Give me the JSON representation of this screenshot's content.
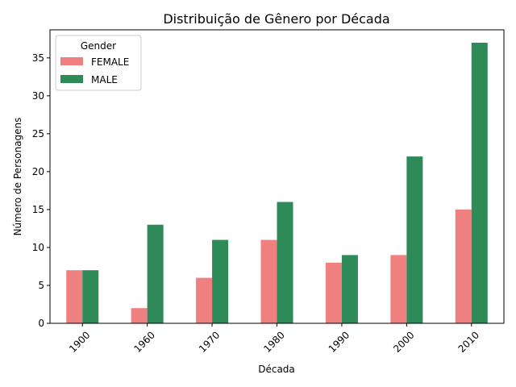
{
  "chart_data": {
    "type": "bar",
    "title": "Distribuição de Gênero por Década",
    "xlabel": "Década",
    "ylabel": "Número de Personagens",
    "categories": [
      "1900",
      "1960",
      "1970",
      "1980",
      "1990",
      "2000",
      "2010"
    ],
    "series": [
      {
        "name": "FEMALE",
        "color": "#f08080",
        "values": [
          7,
          2,
          6,
          11,
          8,
          9,
          15
        ]
      },
      {
        "name": "MALE",
        "color": "#2e8b57",
        "values": [
          7,
          13,
          11,
          16,
          9,
          22,
          37
        ]
      }
    ],
    "ylim": [
      0,
      38.7
    ],
    "yticks": [
      0,
      5,
      10,
      15,
      20,
      25,
      30,
      35
    ],
    "legend": {
      "title": "Gender",
      "position": "top-left"
    },
    "grid": false
  }
}
